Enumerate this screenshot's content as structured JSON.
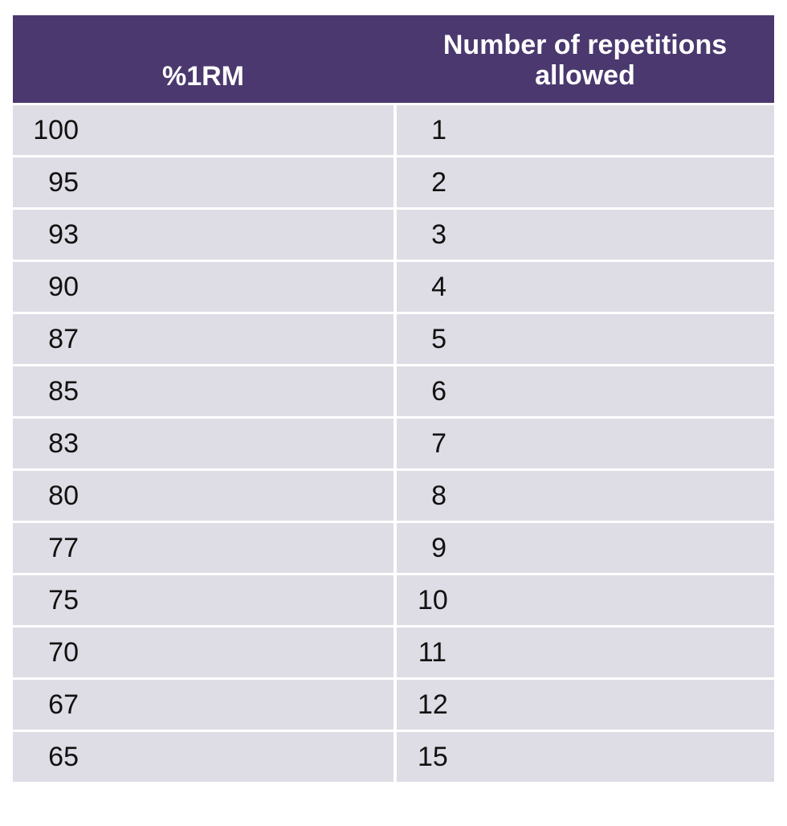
{
  "table": {
    "headers": {
      "percent_1rm": "%1RM",
      "repetitions_line1": "Number of repetitions",
      "repetitions_line2": "allowed"
    },
    "rows": [
      {
        "percent": "100",
        "reps": "1"
      },
      {
        "percent": "95",
        "reps": "2"
      },
      {
        "percent": "93",
        "reps": "3"
      },
      {
        "percent": "90",
        "reps": "4"
      },
      {
        "percent": "87",
        "reps": "5"
      },
      {
        "percent": "85",
        "reps": "6"
      },
      {
        "percent": "83",
        "reps": "7"
      },
      {
        "percent": "80",
        "reps": "8"
      },
      {
        "percent": "77",
        "reps": "9"
      },
      {
        "percent": "75",
        "reps": "10"
      },
      {
        "percent": "70",
        "reps": "11"
      },
      {
        "percent": "67",
        "reps": "12"
      },
      {
        "percent": "65",
        "reps": "15"
      }
    ]
  },
  "colors": {
    "header_bg": "#4a386e",
    "header_text": "#ffffff",
    "row_bg": "#dedde5",
    "row_text": "#111111",
    "divider": "#ffffff"
  }
}
